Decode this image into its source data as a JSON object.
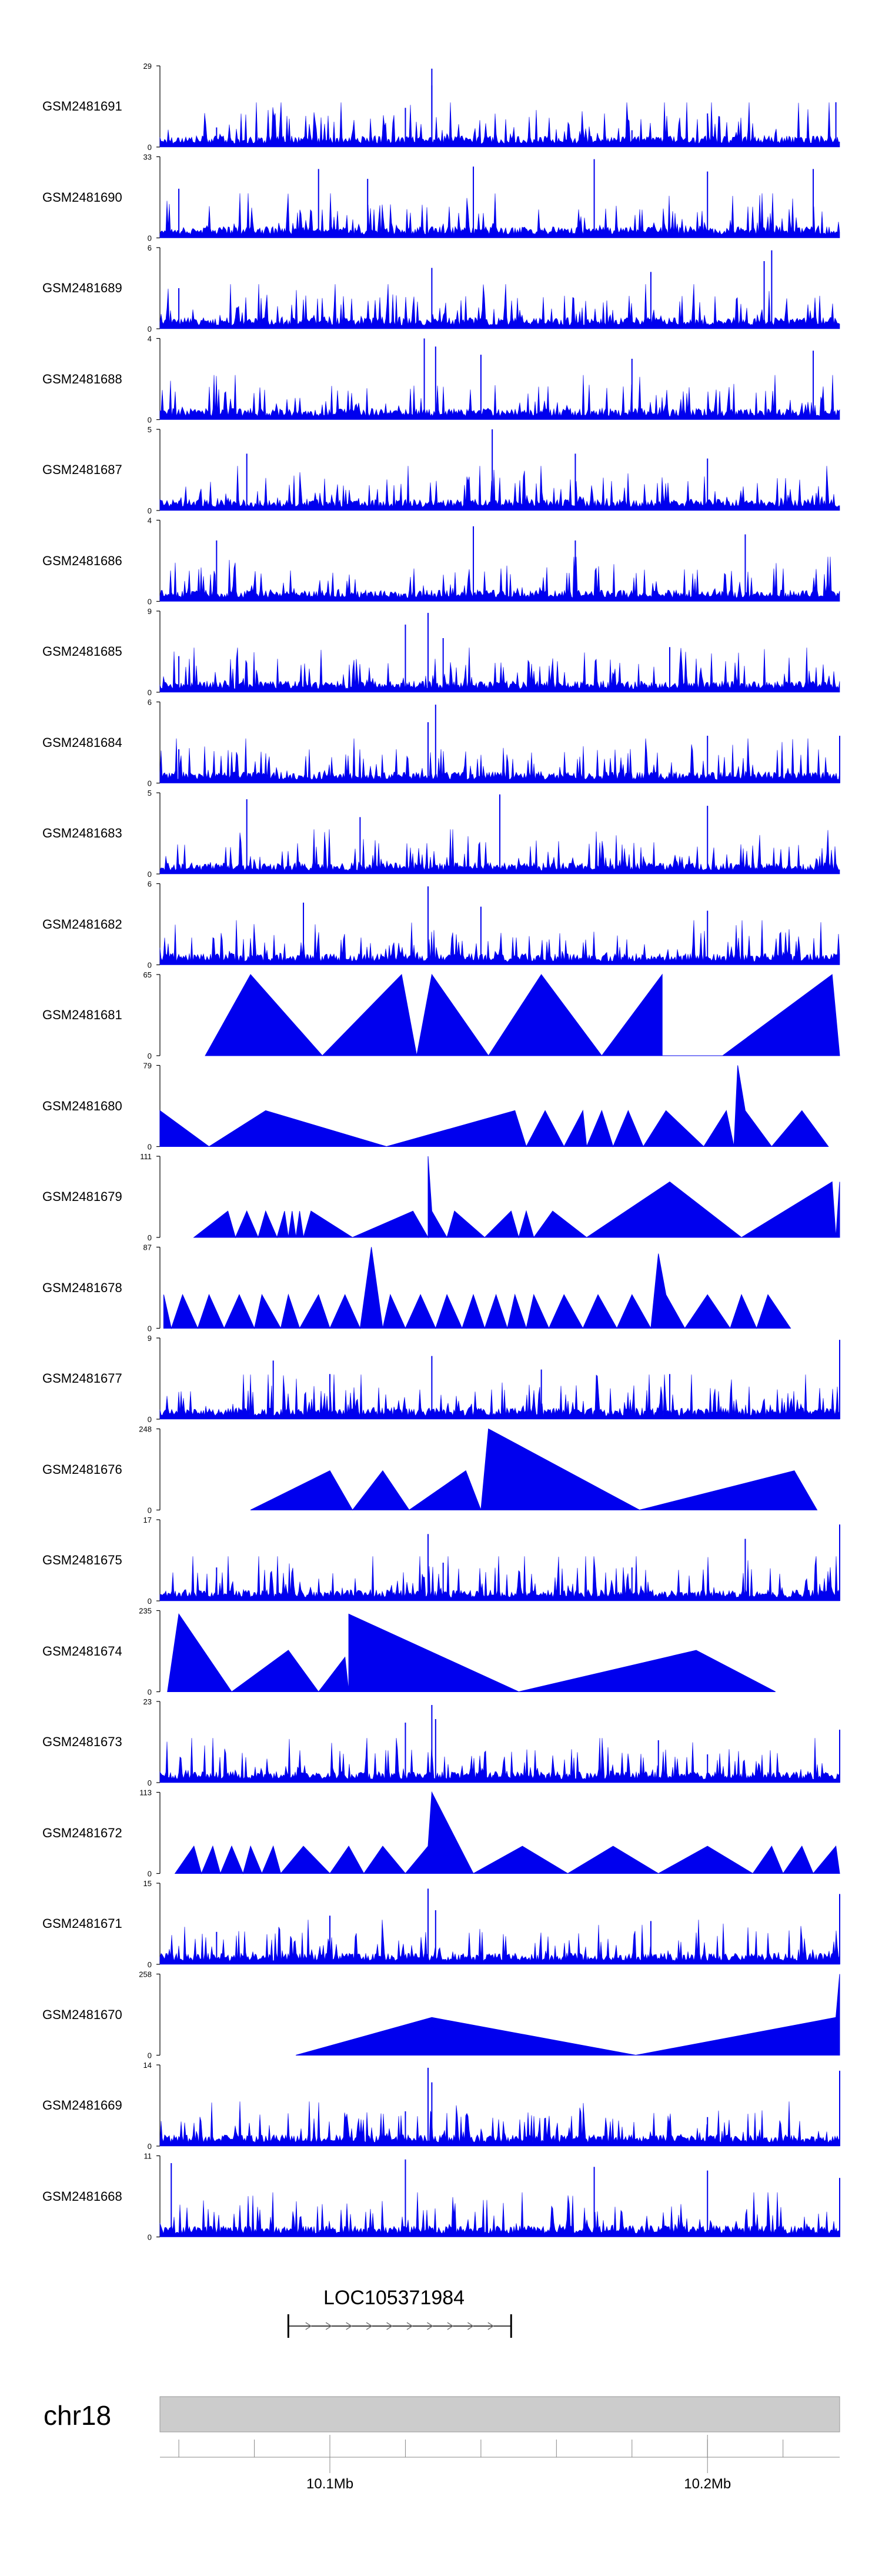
{
  "chart_data": {
    "type": "area",
    "title": "",
    "chromosome": "chr18",
    "xlim": [
      10.055,
      10.235
    ],
    "x_unit": "Mb",
    "x_ticks": [
      {
        "value": 10.1,
        "label": "10.1Mb"
      },
      {
        "value": 10.2,
        "label": "10.2Mb"
      }
    ],
    "gene": {
      "name": "LOC105371984",
      "start": 10.089,
      "end": 10.148,
      "strand": "+"
    },
    "color": "#0000ee",
    "tracks": [
      {
        "name": "GSM2481691",
        "ymax": 29,
        "kind": "dense",
        "peaks": [
          [
            10.127,
            28
          ],
          [
            10.127,
            22
          ],
          [
            10.12,
            14
          ],
          [
            10.2,
            12
          ],
          [
            10.234,
            16
          ],
          [
            10.18,
            6
          ],
          [
            10.07,
            7
          ]
        ]
      },
      {
        "name": "GSM2481690",
        "ymax": 33,
        "kind": "dense",
        "peaks": [
          [
            10.097,
            28
          ],
          [
            10.11,
            24
          ],
          [
            10.2,
            27
          ],
          [
            10.138,
            29
          ],
          [
            10.17,
            32
          ],
          [
            10.228,
            28
          ],
          [
            10.06,
            20
          ]
        ]
      },
      {
        "name": "GSM2481689",
        "ymax": 6,
        "kind": "dense",
        "peaks": [
          [
            10.217,
            5.8
          ],
          [
            10.215,
            5
          ],
          [
            10.185,
            4.2
          ],
          [
            10.127,
            4.5
          ],
          [
            10.06,
            3
          ]
        ]
      },
      {
        "name": "GSM2481688",
        "ymax": 4,
        "kind": "dense",
        "peaks": [
          [
            10.125,
            4
          ],
          [
            10.128,
            3.6
          ],
          [
            10.14,
            3.2
          ],
          [
            10.18,
            3
          ],
          [
            10.228,
            3.4
          ]
        ]
      },
      {
        "name": "GSM2481687",
        "ymax": 5,
        "kind": "dense",
        "peaks": [
          [
            10.143,
            5
          ],
          [
            10.078,
            3.5
          ],
          [
            10.165,
            3.5
          ],
          [
            10.2,
            3.2
          ]
        ]
      },
      {
        "name": "GSM2481686",
        "ymax": 4,
        "kind": "dense",
        "peaks": [
          [
            10.138,
            3.7
          ],
          [
            10.07,
            3
          ],
          [
            10.21,
            3.3
          ],
          [
            10.165,
            3
          ]
        ]
      },
      {
        "name": "GSM2481685",
        "ymax": 9,
        "kind": "dense",
        "peaks": [
          [
            10.126,
            8.8
          ],
          [
            10.12,
            7.5
          ],
          [
            10.13,
            6
          ],
          [
            10.06,
            4
          ],
          [
            10.19,
            5
          ]
        ]
      },
      {
        "name": "GSM2481684",
        "ymax": 6,
        "kind": "dense",
        "peaks": [
          [
            10.128,
            5.8
          ],
          [
            10.126,
            4.5
          ],
          [
            10.2,
            3.5
          ],
          [
            10.235,
            3.5
          ],
          [
            10.06,
            2.5
          ]
        ]
      },
      {
        "name": "GSM2481683",
        "ymax": 5,
        "kind": "dense",
        "peaks": [
          [
            10.145,
            4.9
          ],
          [
            10.078,
            4.6
          ],
          [
            10.108,
            3.5
          ],
          [
            10.2,
            4.2
          ]
        ]
      },
      {
        "name": "GSM2481682",
        "ymax": 6,
        "kind": "dense",
        "peaks": [
          [
            10.126,
            5.8
          ],
          [
            10.093,
            4.6
          ],
          [
            10.14,
            4.3
          ],
          [
            10.2,
            4
          ]
        ]
      },
      {
        "name": "GSM2481681",
        "ymax": 65,
        "kind": "triangles",
        "vertices": [
          [
            10.067,
            0
          ],
          [
            10.079,
            65
          ],
          [
            10.098,
            0
          ],
          [
            10.119,
            65
          ],
          [
            10.123,
            0
          ],
          [
            10.127,
            65
          ],
          [
            10.142,
            0
          ],
          [
            10.156,
            65
          ],
          [
            10.172,
            0
          ],
          [
            10.188,
            65
          ],
          [
            10.188,
            0
          ],
          [
            10.204,
            0
          ],
          [
            10.233,
            65
          ],
          [
            10.235,
            0
          ]
        ]
      },
      {
        "name": "GSM2481680",
        "ymax": 79,
        "kind": "triangles",
        "vertices": [
          [
            10.055,
            35
          ],
          [
            10.068,
            0
          ],
          [
            10.083,
            35
          ],
          [
            10.115,
            0
          ],
          [
            10.149,
            35
          ],
          [
            10.152,
            0
          ],
          [
            10.157,
            35
          ],
          [
            10.162,
            0
          ],
          [
            10.167,
            35
          ],
          [
            10.168,
            0
          ],
          [
            10.172,
            35
          ],
          [
            10.175,
            0
          ],
          [
            10.179,
            35
          ],
          [
            10.183,
            0
          ],
          [
            10.189,
            35
          ],
          [
            10.199,
            0
          ],
          [
            10.205,
            35
          ],
          [
            10.207,
            0
          ],
          [
            10.208,
            79
          ],
          [
            10.21,
            35
          ],
          [
            10.217,
            0
          ],
          [
            10.225,
            35
          ],
          [
            10.232,
            0
          ]
        ]
      },
      {
        "name": "GSM2481679",
        "ymax": 111,
        "kind": "triangles",
        "vertices": [
          [
            10.064,
            0
          ],
          [
            10.073,
            36
          ],
          [
            10.075,
            0
          ],
          [
            10.078,
            36
          ],
          [
            10.081,
            0
          ],
          [
            10.083,
            36
          ],
          [
            10.086,
            0
          ],
          [
            10.088,
            36
          ],
          [
            10.089,
            0
          ],
          [
            10.09,
            36
          ],
          [
            10.091,
            0
          ],
          [
            10.092,
            36
          ],
          [
            10.093,
            0
          ],
          [
            10.095,
            36
          ],
          [
            10.106,
            0
          ],
          [
            10.122,
            36
          ],
          [
            10.126,
            0
          ],
          [
            10.126,
            111
          ],
          [
            10.127,
            36
          ],
          [
            10.131,
            0
          ],
          [
            10.133,
            36
          ],
          [
            10.141,
            0
          ],
          [
            10.148,
            36
          ],
          [
            10.15,
            0
          ],
          [
            10.152,
            36
          ],
          [
            10.154,
            0
          ],
          [
            10.159,
            36
          ],
          [
            10.168,
            0
          ],
          [
            10.19,
            76
          ],
          [
            10.209,
            0
          ],
          [
            10.233,
            76
          ],
          [
            10.234,
            0
          ],
          [
            10.235,
            76
          ]
        ]
      },
      {
        "name": "GSM2481678",
        "ymax": 87,
        "kind": "triangles",
        "vertices": [
          [
            10.056,
            36
          ],
          [
            10.058,
            0
          ],
          [
            10.061,
            36
          ],
          [
            10.065,
            0
          ],
          [
            10.068,
            36
          ],
          [
            10.072,
            0
          ],
          [
            10.076,
            36
          ],
          [
            10.08,
            0
          ],
          [
            10.082,
            36
          ],
          [
            10.087,
            0
          ],
          [
            10.089,
            36
          ],
          [
            10.092,
            0
          ],
          [
            10.097,
            36
          ],
          [
            10.1,
            0
          ],
          [
            10.104,
            36
          ],
          [
            10.108,
            0
          ],
          [
            10.111,
            87
          ],
          [
            10.114,
            0
          ],
          [
            10.116,
            36
          ],
          [
            10.12,
            0
          ],
          [
            10.124,
            36
          ],
          [
            10.128,
            0
          ],
          [
            10.131,
            36
          ],
          [
            10.135,
            0
          ],
          [
            10.138,
            36
          ],
          [
            10.141,
            0
          ],
          [
            10.144,
            36
          ],
          [
            10.147,
            0
          ],
          [
            10.149,
            36
          ],
          [
            10.152,
            0
          ],
          [
            10.154,
            36
          ],
          [
            10.158,
            0
          ],
          [
            10.162,
            36
          ],
          [
            10.167,
            0
          ],
          [
            10.171,
            36
          ],
          [
            10.176,
            0
          ],
          [
            10.18,
            36
          ],
          [
            10.185,
            0
          ],
          [
            10.187,
            80
          ],
          [
            10.189,
            36
          ],
          [
            10.194,
            0
          ],
          [
            10.2,
            36
          ],
          [
            10.206,
            0
          ],
          [
            10.209,
            36
          ],
          [
            10.213,
            0
          ],
          [
            10.216,
            36
          ],
          [
            10.222,
            0
          ]
        ]
      },
      {
        "name": "GSM2481677",
        "ymax": 9,
        "kind": "dense",
        "peaks": [
          [
            10.235,
            8.8
          ],
          [
            10.127,
            7
          ],
          [
            10.085,
            6.5
          ],
          [
            10.1,
            5
          ],
          [
            10.19,
            5
          ],
          [
            10.156,
            5.5
          ]
        ]
      },
      {
        "name": "GSM2481676",
        "ymax": 248,
        "kind": "triangles",
        "vertices": [
          [
            10.079,
            0
          ],
          [
            10.1,
            120
          ],
          [
            10.106,
            0
          ],
          [
            10.114,
            120
          ],
          [
            10.121,
            0
          ],
          [
            10.136,
            120
          ],
          [
            10.14,
            0
          ],
          [
            10.142,
            248
          ],
          [
            10.182,
            0
          ],
          [
            10.223,
            120
          ],
          [
            10.229,
            0
          ]
        ]
      },
      {
        "name": "GSM2481675",
        "ymax": 17,
        "kind": "dense",
        "peaks": [
          [
            10.235,
            16
          ],
          [
            10.126,
            14
          ],
          [
            10.21,
            13
          ],
          [
            10.13,
            8
          ],
          [
            10.07,
            7
          ],
          [
            10.18,
            7
          ]
        ]
      },
      {
        "name": "GSM2481674",
        "ymax": 235,
        "kind": "triangles",
        "vertices": [
          [
            10.057,
            0
          ],
          [
            10.06,
            225
          ],
          [
            10.074,
            0
          ],
          [
            10.089,
            120
          ],
          [
            10.097,
            0
          ],
          [
            10.104,
            100
          ],
          [
            10.105,
            0
          ],
          [
            10.105,
            225
          ],
          [
            10.15,
            0
          ],
          [
            10.197,
            120
          ],
          [
            10.218,
            0
          ]
        ]
      },
      {
        "name": "GSM2481673",
        "ymax": 23,
        "kind": "dense",
        "peaks": [
          [
            10.127,
            22
          ],
          [
            10.128,
            18
          ],
          [
            10.12,
            17
          ],
          [
            10.235,
            15
          ],
          [
            10.187,
            12
          ],
          [
            10.2,
            8
          ]
        ]
      },
      {
        "name": "GSM2481672",
        "ymax": 113,
        "kind": "triangles",
        "vertices": [
          [
            10.059,
            0
          ],
          [
            10.064,
            38
          ],
          [
            10.066,
            0
          ],
          [
            10.069,
            38
          ],
          [
            10.071,
            0
          ],
          [
            10.074,
            38
          ],
          [
            10.077,
            0
          ],
          [
            10.079,
            38
          ],
          [
            10.082,
            0
          ],
          [
            10.085,
            38
          ],
          [
            10.087,
            0
          ],
          [
            10.093,
            38
          ],
          [
            10.1,
            0
          ],
          [
            10.105,
            38
          ],
          [
            10.109,
            0
          ],
          [
            10.114,
            38
          ],
          [
            10.12,
            0
          ],
          [
            10.126,
            38
          ],
          [
            10.127,
            113
          ],
          [
            10.138,
            0
          ],
          [
            10.151,
            38
          ],
          [
            10.163,
            0
          ],
          [
            10.175,
            38
          ],
          [
            10.187,
            0
          ],
          [
            10.2,
            38
          ],
          [
            10.212,
            0
          ],
          [
            10.217,
            38
          ],
          [
            10.22,
            0
          ],
          [
            10.225,
            38
          ],
          [
            10.228,
            0
          ],
          [
            10.234,
            38
          ],
          [
            10.235,
            0
          ]
        ]
      },
      {
        "name": "GSM2481671",
        "ymax": 15,
        "kind": "dense",
        "peaks": [
          [
            10.126,
            14
          ],
          [
            10.235,
            13
          ],
          [
            10.128,
            10
          ],
          [
            10.1,
            9
          ],
          [
            10.185,
            8
          ],
          [
            10.07,
            6
          ]
        ]
      },
      {
        "name": "GSM2481670",
        "ymax": 258,
        "kind": "triangles",
        "vertices": [
          [
            10.091,
            0
          ],
          [
            10.127,
            120
          ],
          [
            10.181,
            0
          ],
          [
            10.234,
            120
          ],
          [
            10.235,
            258
          ],
          [
            10.235,
            0
          ]
        ]
      },
      {
        "name": "GSM2481669",
        "ymax": 14,
        "kind": "dense",
        "peaks": [
          [
            10.126,
            13.5
          ],
          [
            10.127,
            11
          ],
          [
            10.235,
            13
          ],
          [
            10.12,
            6
          ],
          [
            10.2,
            5
          ]
        ]
      },
      {
        "name": "GSM2481668",
        "ymax": 11,
        "kind": "dense",
        "peaks": [
          [
            10.058,
            10
          ],
          [
            10.12,
            10.5
          ],
          [
            10.2,
            9
          ],
          [
            10.17,
            9.5
          ],
          [
            10.235,
            8
          ]
        ]
      }
    ]
  }
}
